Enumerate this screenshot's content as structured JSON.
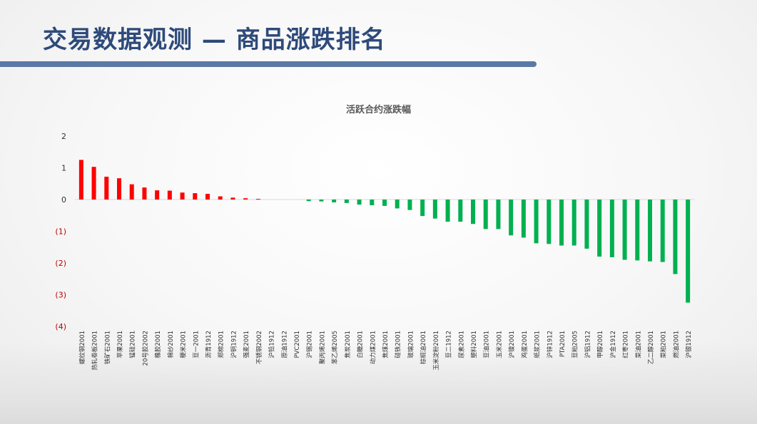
{
  "header": {
    "title": "交易数据观测 — 商品涨跌排名"
  },
  "colors": {
    "up": "#ff0000",
    "down": "#00b050",
    "title": "#2e4a7a",
    "bar_accent": "#5a79a6"
  },
  "chart_data": {
    "type": "bar",
    "title": "活跃合约涨跌幅",
    "xlabel": "",
    "ylabel": "",
    "ylim": [
      -4,
      2
    ],
    "yticks": [
      2,
      1,
      0,
      -1,
      -2,
      -3,
      -4
    ],
    "ytick_labels": [
      "2",
      "1",
      "0",
      "(1)",
      "(2)",
      "(3)",
      "(4)"
    ],
    "grid": false,
    "categories": [
      "螺纹钢2001",
      "热轧卷板2001",
      "铁矿石2001",
      "苹果2001",
      "锰硅2001",
      "20号胶2002",
      "橡胶2001",
      "棉纱2001",
      "粳米2001",
      "豆一2001",
      "沥青1912",
      "郑棉2001",
      "沪铜1912",
      "强麦2001",
      "不锈钢2002",
      "沪铅1912",
      "原油1912",
      "PVC2001",
      "沪锡2001",
      "聚丙烯2001",
      "苯乙烯2005",
      "焦炭2001",
      "白糖2001",
      "动力煤2001",
      "焦煤2001",
      "硅铁2001",
      "玻璃2001",
      "棕榈油2001",
      "玉米淀粉2001",
      "豆二1912",
      "尿素2001",
      "塑料2001",
      "豆油2001",
      "玉米2001",
      "沪镍2001",
      "鸡蛋2001",
      "纸浆2001",
      "沪锌1912",
      "PTA2001",
      "豆粕2005",
      "沪铝1912",
      "甲醇2001",
      "沪金1912",
      "红枣2001",
      "菜油2001",
      "乙二醇2001",
      "菜粕2001",
      "燃油2001",
      "沪银1912"
    ],
    "values": [
      1.25,
      1.03,
      0.72,
      0.67,
      0.48,
      0.38,
      0.29,
      0.28,
      0.22,
      0.2,
      0.18,
      0.1,
      0.06,
      0.04,
      0.02,
      0.0,
      0.0,
      0.0,
      -0.05,
      -0.06,
      -0.09,
      -0.11,
      -0.16,
      -0.18,
      -0.2,
      -0.28,
      -0.33,
      -0.52,
      -0.6,
      -0.7,
      -0.7,
      -0.77,
      -0.93,
      -0.93,
      -1.13,
      -1.2,
      -1.38,
      -1.4,
      -1.45,
      -1.45,
      -1.55,
      -1.8,
      -1.82,
      -1.9,
      -1.92,
      -1.95,
      -1.97,
      -2.35,
      -3.25
    ]
  }
}
